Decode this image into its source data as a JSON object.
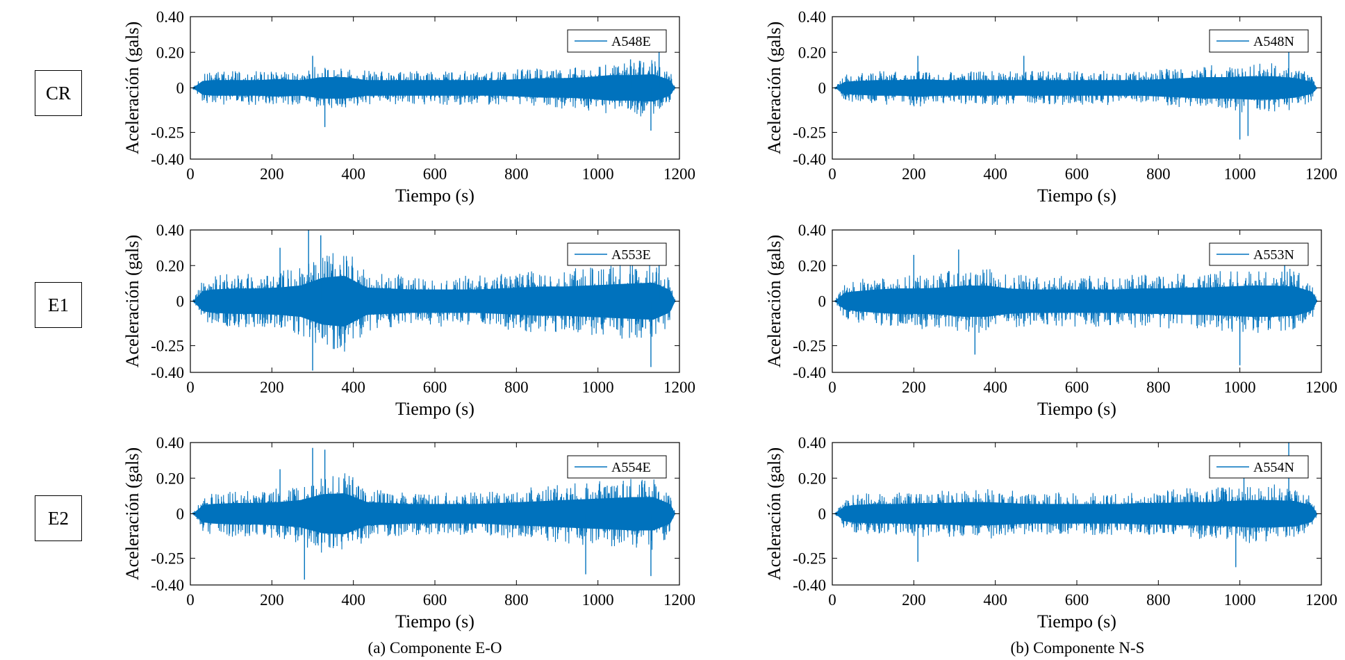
{
  "stations": [
    "CR",
    "E1",
    "E2"
  ],
  "columns": [
    {
      "caption": "(a) Componente E-O"
    },
    {
      "caption": "(b) Componente N-S"
    }
  ],
  "colors": {
    "signal": "#0072BD",
    "axis": "#000000",
    "background": "#ffffff"
  },
  "chart_data": [
    {
      "type": "line",
      "legend": "A548E",
      "xlabel": "Tiempo (s)",
      "ylabel": "Aceleración (gals)",
      "xlim": [
        0,
        1200
      ],
      "ylim": [
        -0.4,
        0.4
      ],
      "xticks": [
        0,
        200,
        400,
        600,
        800,
        1000,
        1200
      ],
      "xtick_labels": [
        "0",
        "200",
        "400",
        "600",
        "800",
        "1000",
        "1200"
      ],
      "yticks": [
        0.4,
        0.2,
        0,
        -0.25,
        -0.4
      ],
      "ytick_labels": [
        "0.40",
        "0.20",
        "0",
        "-0.25",
        "-0.40"
      ],
      "duration_s": 1190,
      "amplitude_envelope": [
        0.06,
        0.08,
        0.08,
        0.08,
        0.09,
        0.08,
        0.11,
        0.11,
        0.08,
        0.08,
        0.08,
        0.08,
        0.08,
        0.08,
        0.08,
        0.09,
        0.1,
        0.1,
        0.11,
        0.13,
        0.13,
        0.14,
        0.06
      ],
      "peaks": [
        {
          "t": 300,
          "a": 0.18
        },
        {
          "t": 330,
          "a": -0.22
        },
        {
          "t": 1130,
          "a": -0.24
        },
        {
          "t": 1150,
          "a": 0.2
        },
        {
          "t": 1080,
          "a": 0.16
        }
      ]
    },
    {
      "type": "line",
      "legend": "A548N",
      "xlabel": "Tiempo (s)",
      "ylabel": "Aceleración (gals)",
      "xlim": [
        0,
        1200
      ],
      "ylim": [
        -0.4,
        0.4
      ],
      "xticks": [
        0,
        200,
        400,
        600,
        800,
        1000,
        1200
      ],
      "xtick_labels": [
        "0",
        "200",
        "400",
        "600",
        "800",
        "1000",
        "1200"
      ],
      "yticks": [
        0.4,
        0.2,
        0,
        -0.25,
        -0.4
      ],
      "ytick_labels": [
        "0.40",
        "0.20",
        "0",
        "-0.25",
        "-0.40"
      ],
      "duration_s": 1190,
      "amplitude_envelope": [
        0.05,
        0.07,
        0.08,
        0.08,
        0.09,
        0.08,
        0.08,
        0.08,
        0.08,
        0.08,
        0.08,
        0.08,
        0.08,
        0.08,
        0.08,
        0.09,
        0.1,
        0.11,
        0.11,
        0.12,
        0.12,
        0.1,
        0.05
      ],
      "peaks": [
        {
          "t": 210,
          "a": 0.18
        },
        {
          "t": 1000,
          "a": -0.29
        },
        {
          "t": 1020,
          "a": -0.27
        },
        {
          "t": 1120,
          "a": 0.2
        },
        {
          "t": 470,
          "a": 0.18
        }
      ]
    },
    {
      "type": "line",
      "legend": "A553E",
      "xlabel": "Tiempo (s)",
      "ylabel": "Aceleración (gals)",
      "xlim": [
        0,
        1200
      ],
      "ylim": [
        -0.4,
        0.4
      ],
      "xticks": [
        0,
        200,
        400,
        600,
        800,
        1000,
        1200
      ],
      "xtick_labels": [
        "0",
        "200",
        "400",
        "600",
        "800",
        "1000",
        "1200"
      ],
      "yticks": [
        0.4,
        0.2,
        0,
        -0.25,
        -0.4
      ],
      "ytick_labels": [
        "0.40",
        "0.20",
        "0",
        "-0.25",
        "-0.40"
      ],
      "duration_s": 1190,
      "amplitude_envelope": [
        0.08,
        0.12,
        0.13,
        0.13,
        0.14,
        0.16,
        0.24,
        0.26,
        0.14,
        0.13,
        0.12,
        0.12,
        0.12,
        0.12,
        0.13,
        0.14,
        0.15,
        0.15,
        0.16,
        0.17,
        0.18,
        0.19,
        0.09
      ],
      "peaks": [
        {
          "t": 290,
          "a": 0.4
        },
        {
          "t": 300,
          "a": -0.39
        },
        {
          "t": 320,
          "a": 0.37
        },
        {
          "t": 1130,
          "a": -0.37
        },
        {
          "t": 1150,
          "a": 0.3
        },
        {
          "t": 220,
          "a": 0.3
        }
      ]
    },
    {
      "type": "line",
      "legend": "A553N",
      "xlabel": "Tiempo (s)",
      "ylabel": "Aceleración (gals)",
      "xlim": [
        0,
        1200
      ],
      "ylim": [
        -0.4,
        0.4
      ],
      "xticks": [
        0,
        200,
        400,
        600,
        800,
        1000,
        1200
      ],
      "xtick_labels": [
        "0",
        "200",
        "400",
        "600",
        "800",
        "1000",
        "1200"
      ],
      "yticks": [
        0.4,
        0.2,
        0,
        -0.25,
        -0.4
      ],
      "ytick_labels": [
        "0.40",
        "0.20",
        "0",
        "-0.25",
        "-0.40"
      ],
      "duration_s": 1190,
      "amplitude_envelope": [
        0.07,
        0.1,
        0.12,
        0.13,
        0.13,
        0.14,
        0.16,
        0.16,
        0.13,
        0.12,
        0.12,
        0.12,
        0.12,
        0.12,
        0.13,
        0.13,
        0.14,
        0.14,
        0.15,
        0.16,
        0.16,
        0.15,
        0.08
      ],
      "peaks": [
        {
          "t": 310,
          "a": 0.29
        },
        {
          "t": 200,
          "a": 0.26
        },
        {
          "t": 1000,
          "a": -0.36
        },
        {
          "t": 1110,
          "a": 0.25
        },
        {
          "t": 350,
          "a": -0.3
        }
      ]
    },
    {
      "type": "line",
      "legend": "A554E",
      "xlabel": "Tiempo (s)",
      "ylabel": "Aceleración (gals)",
      "xlim": [
        0,
        1200
      ],
      "ylim": [
        -0.4,
        0.4
      ],
      "xticks": [
        0,
        200,
        400,
        600,
        800,
        1000,
        1200
      ],
      "xtick_labels": [
        "0",
        "200",
        "400",
        "600",
        "800",
        "1000",
        "1200"
      ],
      "yticks": [
        0.4,
        0.2,
        0,
        -0.25,
        -0.4
      ],
      "ytick_labels": [
        "0.40",
        "0.20",
        "0",
        "-0.25",
        "-0.40"
      ],
      "duration_s": 1190,
      "amplitude_envelope": [
        0.07,
        0.1,
        0.11,
        0.11,
        0.12,
        0.14,
        0.2,
        0.21,
        0.12,
        0.11,
        0.1,
        0.1,
        0.1,
        0.1,
        0.11,
        0.12,
        0.13,
        0.14,
        0.15,
        0.16,
        0.17,
        0.17,
        0.08
      ],
      "peaks": [
        {
          "t": 300,
          "a": 0.37
        },
        {
          "t": 280,
          "a": -0.37
        },
        {
          "t": 330,
          "a": 0.36
        },
        {
          "t": 1130,
          "a": -0.35
        },
        {
          "t": 970,
          "a": -0.34
        },
        {
          "t": 220,
          "a": 0.25
        }
      ]
    },
    {
      "type": "line",
      "legend": "A554N",
      "xlabel": "Tiempo (s)",
      "ylabel": "Aceleración (gals)",
      "xlim": [
        0,
        1200
      ],
      "ylim": [
        -0.4,
        0.4
      ],
      "xticks": [
        0,
        200,
        400,
        600,
        800,
        1000,
        1200
      ],
      "xtick_labels": [
        "0",
        "200",
        "400",
        "600",
        "800",
        "1000",
        "1200"
      ],
      "yticks": [
        0.4,
        0.2,
        0,
        -0.25,
        -0.4
      ],
      "ytick_labels": [
        "0.40",
        "0.20",
        "0",
        "-0.25",
        "-0.40"
      ],
      "duration_s": 1190,
      "amplitude_envelope": [
        0.06,
        0.09,
        0.1,
        0.1,
        0.11,
        0.11,
        0.12,
        0.12,
        0.11,
        0.1,
        0.1,
        0.1,
        0.1,
        0.1,
        0.11,
        0.11,
        0.12,
        0.12,
        0.13,
        0.14,
        0.14,
        0.13,
        0.07
      ],
      "peaks": [
        {
          "t": 1120,
          "a": 0.4
        },
        {
          "t": 990,
          "a": -0.3
        },
        {
          "t": 210,
          "a": -0.27
        },
        {
          "t": 1010,
          "a": 0.21
        }
      ]
    }
  ]
}
